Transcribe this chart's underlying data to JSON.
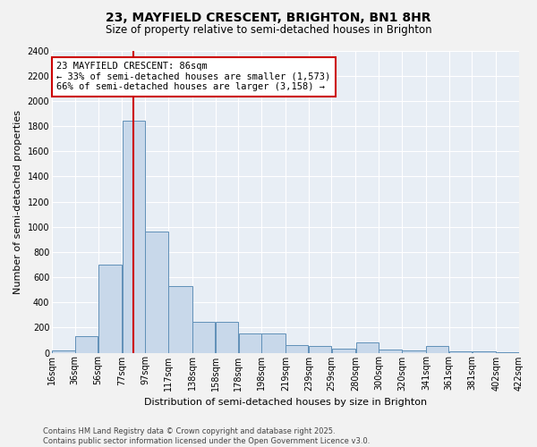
{
  "title": "23, MAYFIELD CRESCENT, BRIGHTON, BN1 8HR",
  "subtitle": "Size of property relative to semi-detached houses in Brighton",
  "xlabel": "Distribution of semi-detached houses by size in Brighton",
  "ylabel": "Number of semi-detached properties",
  "property_label": "23 MAYFIELD CRESCENT: 86sqm",
  "pct_smaller": 33,
  "pct_larger": 66,
  "count_smaller": 1573,
  "count_larger": 3158,
  "footnote1": "Contains HM Land Registry data © Crown copyright and database right 2025.",
  "footnote2": "Contains public sector information licensed under the Open Government Licence v3.0.",
  "bar_left_edges": [
    16,
    36,
    56,
    77,
    97,
    117,
    138,
    158,
    178,
    198,
    219,
    239,
    259,
    280,
    300,
    320,
    341,
    361,
    381,
    402
  ],
  "bar_widths": [
    20,
    20,
    21,
    20,
    20,
    21,
    20,
    20,
    20,
    21,
    20,
    20,
    21,
    20,
    20,
    21,
    20,
    20,
    21,
    20
  ],
  "bar_heights": [
    15,
    130,
    700,
    1840,
    960,
    530,
    245,
    245,
    150,
    150,
    60,
    50,
    30,
    85,
    25,
    15,
    55,
    12,
    8,
    3
  ],
  "bar_color": "#c8d8ea",
  "bar_edgecolor": "#6090b8",
  "vline_color": "#cc0000",
  "vline_x": 87,
  "annotation_box_edgecolor": "#cc0000",
  "ylim": [
    0,
    2400
  ],
  "yticks": [
    0,
    200,
    400,
    600,
    800,
    1000,
    1200,
    1400,
    1600,
    1800,
    2000,
    2200,
    2400
  ],
  "tick_labels": [
    "16sqm",
    "36sqm",
    "56sqm",
    "77sqm",
    "97sqm",
    "117sqm",
    "138sqm",
    "158sqm",
    "178sqm",
    "198sqm",
    "219sqm",
    "239sqm",
    "259sqm",
    "280sqm",
    "300sqm",
    "320sqm",
    "341sqm",
    "361sqm",
    "381sqm",
    "402sqm",
    "422sqm"
  ],
  "plot_bg_color": "#e8eef5",
  "fig_bg_color": "#f2f2f2",
  "title_fontsize": 10,
  "subtitle_fontsize": 8.5,
  "axis_label_fontsize": 8,
  "tick_fontsize": 7,
  "annot_fontsize": 7.5,
  "footnote_fontsize": 6
}
